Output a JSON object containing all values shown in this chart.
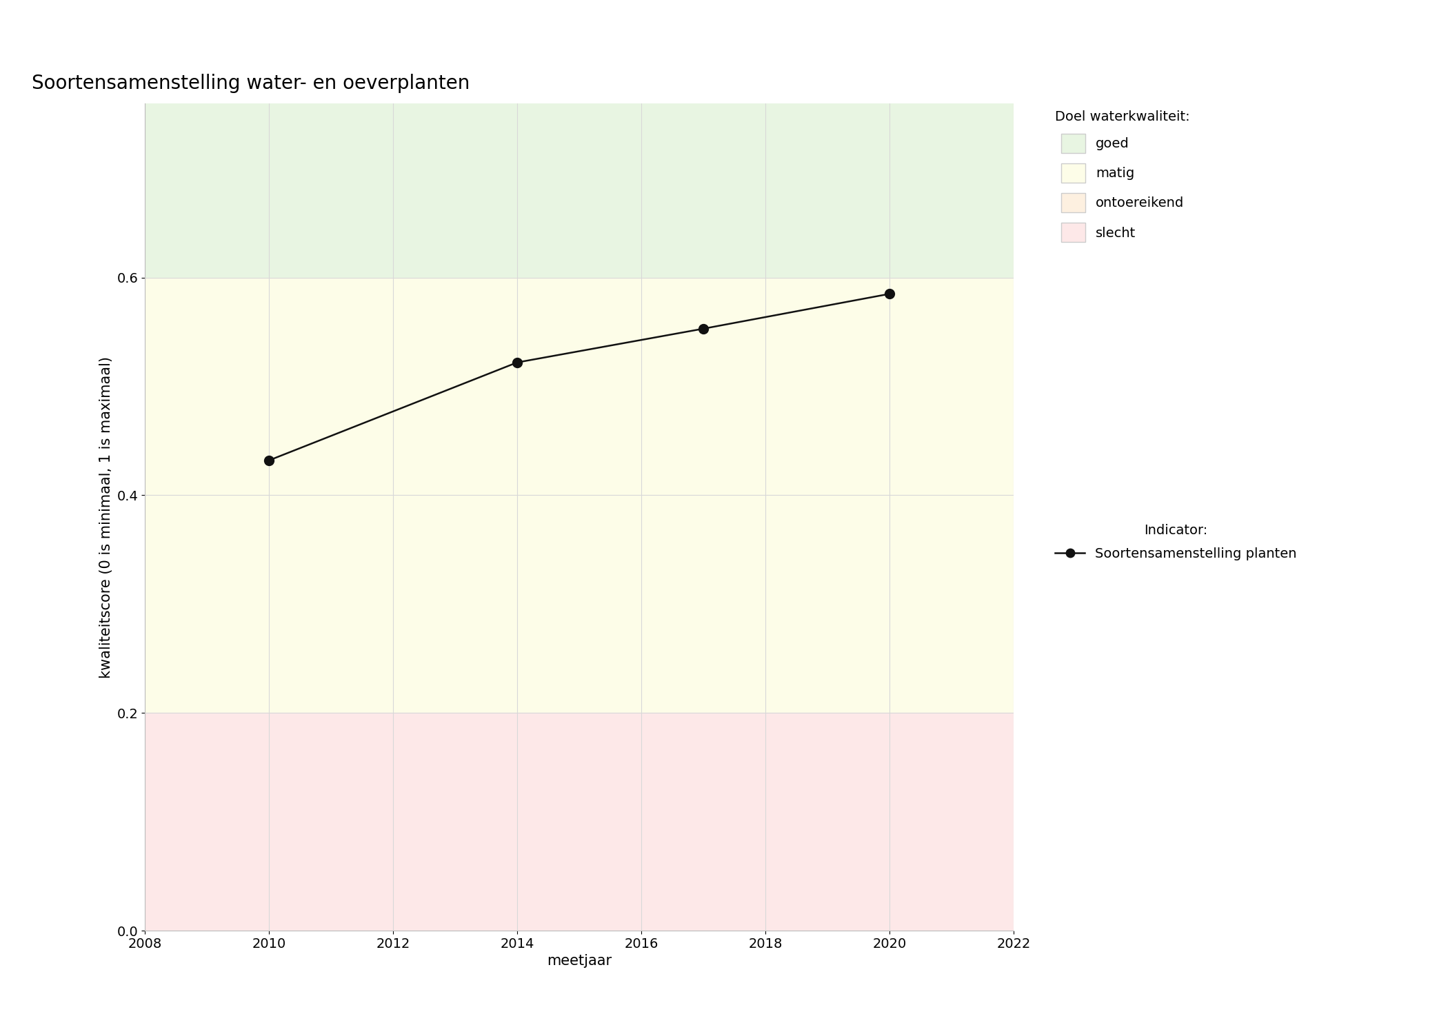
{
  "title": "Soortensamenstelling water- en oeverplanten",
  "xlabel": "meetjaar",
  "ylabel": "kwaliteitscore (0 is minimaal, 1 is maximaal)",
  "xlim": [
    2008,
    2022
  ],
  "ylim": [
    0.0,
    0.76
  ],
  "xticks": [
    2008,
    2010,
    2012,
    2014,
    2016,
    2018,
    2020,
    2022
  ],
  "yticks": [
    0.0,
    0.2,
    0.4,
    0.6
  ],
  "years": [
    2010,
    2014,
    2017,
    2020
  ],
  "values": [
    0.432,
    0.522,
    0.553,
    0.585
  ],
  "bg_colors": {
    "goed": "#e8f5e2",
    "matig": "#fdfde8",
    "ontoereikend": "#fdf0e0",
    "slecht": "#fde8e8"
  },
  "bg_ranges": {
    "goed": [
      0.6,
      0.76
    ],
    "matig": [
      0.2,
      0.6
    ],
    "ontoereikend": [
      0.0,
      0.2
    ],
    "slecht": [
      0.0,
      0.2
    ]
  },
  "legend_title_1": "Doel waterkwaliteit:",
  "legend_title_2": "Indicator:",
  "legend_labels": [
    "goed",
    "matig",
    "ontoereikend",
    "slecht"
  ],
  "indicator_label": "Soortensamenstelling planten",
  "line_color": "#111111",
  "marker_color": "#111111",
  "marker_size": 10,
  "line_width": 1.8,
  "title_fontsize": 20,
  "axis_label_fontsize": 15,
  "tick_fontsize": 14,
  "legend_fontsize": 14,
  "grid_color": "#d8d8d8",
  "grid_linewidth": 0.8
}
